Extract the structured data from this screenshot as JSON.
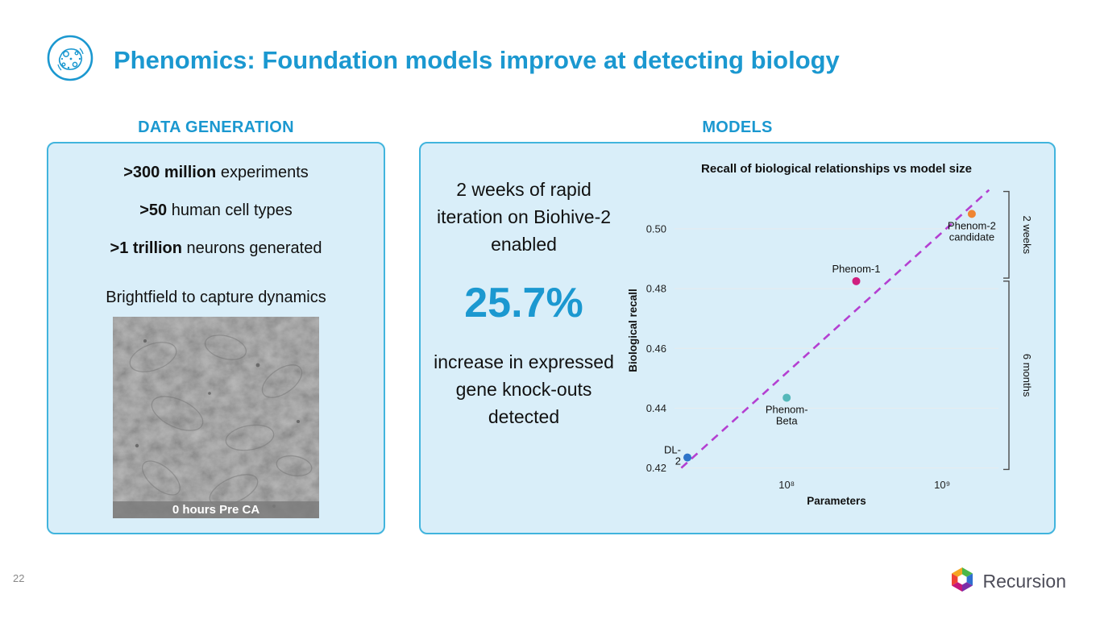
{
  "theme": {
    "accent": "#1b98d0",
    "panel_bg": "#d9eef9",
    "panel_border": "#41b4dd",
    "text_dark": "#111111",
    "muted": "#888888",
    "logo_text": "#4d4d59"
  },
  "slide": {
    "page_number": "22",
    "title": "Phenomics: Foundation models improve at detecting biology",
    "brand": "Recursion"
  },
  "icons": {
    "title_icon": "cell-icon",
    "brand_icon": "recursion-hexagon-icon"
  },
  "data_generation": {
    "header": "DATA GENERATION",
    "stats": [
      {
        "bold": ">300 million",
        "rest": " experiments"
      },
      {
        "bold": ">50",
        "rest": " human cell types"
      },
      {
        "bold": ">1 trillion",
        "rest": " neurons generated"
      }
    ],
    "capture_line": "Brightfield to capture dynamics",
    "image_caption": "0 hours Pre CA"
  },
  "models": {
    "header": "MODELS",
    "lead_text": "2 weeks of rapid iteration on Biohive-2 enabled",
    "stat_value": "25.7%",
    "stat_description": "increase in expressed gene knock-outs detected"
  },
  "chart_data": {
    "type": "scatter",
    "title": "Recall of biological relationships vs model size",
    "xlabel": "Parameters",
    "ylabel": "Biological recall",
    "x_scale": "log",
    "xlim": [
      19000000,
      2300000000
    ],
    "ylim": [
      0.418,
      0.514
    ],
    "x_ticks": [
      {
        "value": 100000000,
        "label": "10⁸"
      },
      {
        "value": 1000000000,
        "label": "10⁹"
      }
    ],
    "y_ticks": [
      0.42,
      0.44,
      0.46,
      0.48,
      0.5
    ],
    "grid": "horizontal",
    "legend": "none",
    "points": [
      {
        "name": "DL-2",
        "label_lines": [
          "DL-",
          "2"
        ],
        "label_pos": "left",
        "params": 23000000,
        "recall": 0.4235,
        "color": "#2e74c9"
      },
      {
        "name": "Phenom-Beta",
        "label_lines": [
          "Phenom-",
          "Beta"
        ],
        "label_pos": "below",
        "params": 100000000,
        "recall": 0.4435,
        "color": "#54b8ba"
      },
      {
        "name": "Phenom-1",
        "label_lines": [
          "Phenom-1"
        ],
        "label_pos": "above",
        "params": 280000000,
        "recall": 0.4825,
        "color": "#d01f7e"
      },
      {
        "name": "Phenom-2 candidate",
        "label_lines": [
          "Phenom-2",
          "candidate"
        ],
        "label_pos": "below",
        "params": 1550000000,
        "recall": 0.505,
        "color": "#ef8532"
      }
    ],
    "trend_line": {
      "color": "#b43fd1",
      "style": "dashed",
      "from": {
        "params": 21000000,
        "recall": 0.42
      },
      "to": {
        "params": 2000000000,
        "recall": 0.513
      }
    },
    "brackets": [
      {
        "label": "2 weeks",
        "from_recall": 0.4835,
        "to_recall": 0.5125
      },
      {
        "label": "6 months",
        "from_recall": 0.4195,
        "to_recall": 0.4825
      }
    ]
  }
}
